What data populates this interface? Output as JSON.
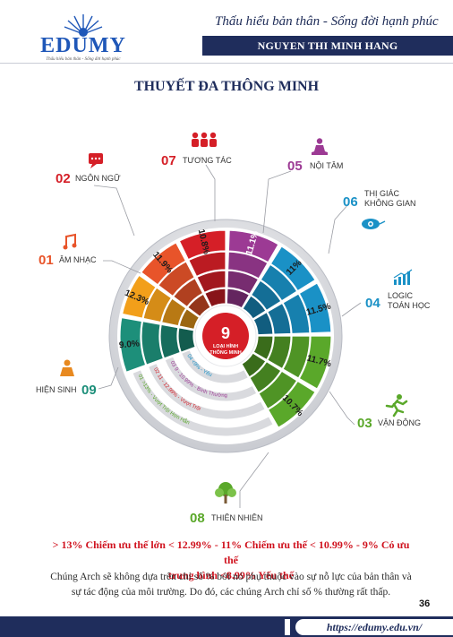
{
  "header": {
    "tagline": "Thấu hiểu bản thân - Sống đời hạnh phúc",
    "name": "NGUYEN THI MINH HANG",
    "logo": {
      "text": "EDUMY",
      "tagline": "Thấu hiểu bản thân - Sống đời hạnh phúc",
      "icon": "logo-sunburst-icon"
    }
  },
  "title": "THUYẾT ĐA THÔNG MINH",
  "center": {
    "number": "9",
    "line1": "LOẠI HÌNH",
    "line2": "THÔNG MINH"
  },
  "segments": [
    {
      "label": "11.1%",
      "color": "#9c3a94"
    },
    {
      "label": "11%",
      "color": "#1a91c6"
    },
    {
      "label": "11.5%",
      "color": "#1a91c6"
    },
    {
      "label": "11.7%",
      "color": "#5aa82a"
    },
    {
      "label": "10.7%",
      "color": "#5aa82a"
    },
    {
      "label": "9.0%",
      "color": "#1d8f7a"
    },
    {
      "label": "12.3%",
      "color": "#f29f1a"
    },
    {
      "label": "11.9%",
      "color": "#e8542a"
    },
    {
      "label": "10.8%",
      "color": "#d51f27"
    }
  ],
  "intelligences": [
    {
      "num": "01",
      "name": "ÂM NHẠC",
      "icon": "music-note-icon",
      "color": "#e8542a"
    },
    {
      "num": "02",
      "name": "NGÔN NGỮ",
      "icon": "speech-bubble-icon",
      "color": "#d51f27"
    },
    {
      "num": "07",
      "name": "TƯƠNG TÁC",
      "icon": "people-group-icon",
      "color": "#d51f27"
    },
    {
      "num": "05",
      "name": "NỘI TÂM",
      "icon": "meditation-icon",
      "color": "#9c3a94"
    },
    {
      "num": "06",
      "name_line1": "THỊ GIÁC",
      "name_line2": "KHÔNG GIAN",
      "icon": "eye-brain-icon",
      "color": "#1a91c6"
    },
    {
      "num": "04",
      "name_line1": "LOGIC",
      "name_line2": "TOÁN HỌC",
      "icon": "bar-chart-icon",
      "color": "#1a91c6"
    },
    {
      "num": "03",
      "name": "VẬN ĐỘNG",
      "icon": "running-person-icon",
      "color": "#5aa82a"
    },
    {
      "num": "08",
      "name": "THIÊN NHIÊN",
      "icon": "tree-icon",
      "color": "#5aa82a"
    },
    {
      "num": "09",
      "name": "HIỆN SINH",
      "icon": "monk-icon",
      "color": "#1d8f7a"
    }
  ],
  "scale": [
    {
      "num": "01",
      "text": ">13% - Vượt Trội Hơn Hẳn"
    },
    {
      "num": "02",
      "text": "11 - 12.99% - Vượt Trội"
    },
    {
      "num": "03",
      "text": "9 - 10.99% - Bình Thường"
    },
    {
      "num": "04",
      "text": "<9% - Yếu"
    }
  ],
  "legend": {
    "line1": "> 13% Chiếm ưu thế lớn < 12.99% - 11% Chiếm ưu thế < 10.99% - 9% Có ưu thế",
    "line2": "trung bình <8.99% Yếu thế"
  },
  "note": "Chúng Arch sẽ không dựa trên chỉ số % bởi nó phụ thuộc vào sự nỗ lực của bản thân và sự tác động của môi trường. Do đó, các chúng Arch chỉ số % thường rất thấp.",
  "page_number": "36",
  "footer_url": "https://edumy.edu.vn/"
}
